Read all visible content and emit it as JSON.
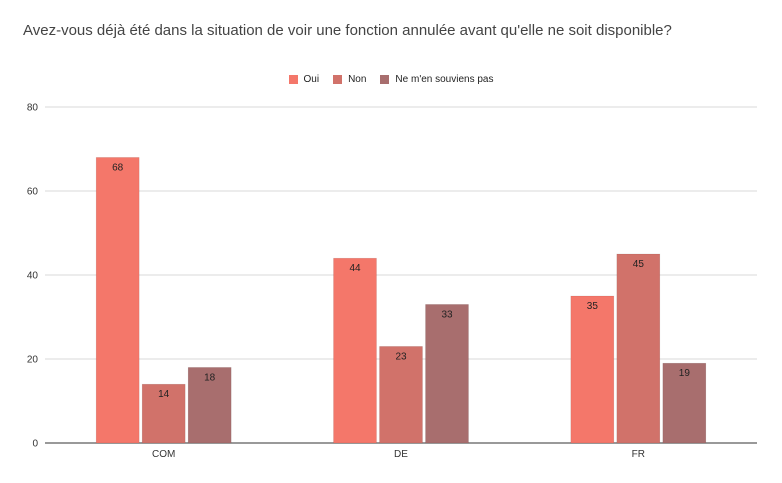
{
  "chart_data": {
    "type": "bar",
    "title": "Avez-vous déjà été dans la situation de voir une fonction annulée avant qu'elle ne soit disponible?",
    "categories": [
      "COM",
      "DE",
      "FR"
    ],
    "series": [
      {
        "name": "Oui",
        "values": [
          68,
          44,
          35
        ],
        "color": "#f4776a"
      },
      {
        "name": "Non",
        "values": [
          14,
          23,
          45
        ],
        "color": "#d1726a"
      },
      {
        "name": "Ne m'en souviens pas",
        "values": [
          18,
          33,
          19
        ],
        "color": "#a86e6e"
      }
    ],
    "ylim": [
      0,
      80
    ],
    "yticks": [
      0,
      20,
      40,
      60,
      80
    ],
    "xlabel": "",
    "ylabel": "",
    "grid": true,
    "legend": "top-center",
    "data_labels": true
  }
}
